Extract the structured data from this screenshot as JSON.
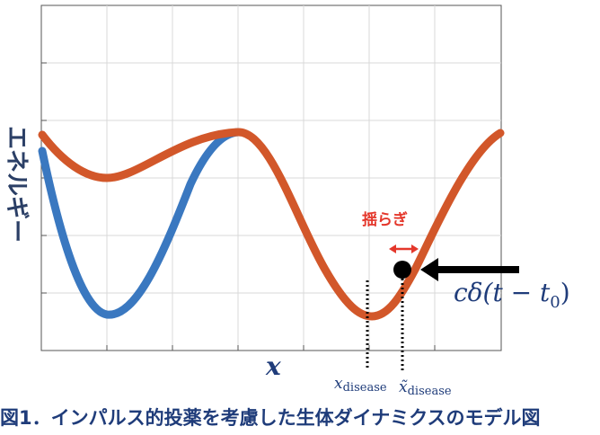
{
  "y_axis_label": "エネルギー",
  "x_axis_label": "x",
  "fluctuation_label": "揺らぎ",
  "formula": {
    "prefix": "cδ(t − t",
    "subscript": "0",
    "suffix": ")"
  },
  "marker_x_disease": {
    "base": "x",
    "subscript": "disease"
  },
  "marker_x_tilde_disease": {
    "base": "x̃",
    "subscript": "disease"
  },
  "caption": "図1．インパルス的投薬を考慮した生体ダイナミクスのモデル図",
  "colors": {
    "healthy_curve": "#3a78c0",
    "disease_curve": "#d2572a",
    "fluctuation_arrow": "#e4372b",
    "text": "#1f3c7a",
    "grid": "#d9d9d9"
  }
}
